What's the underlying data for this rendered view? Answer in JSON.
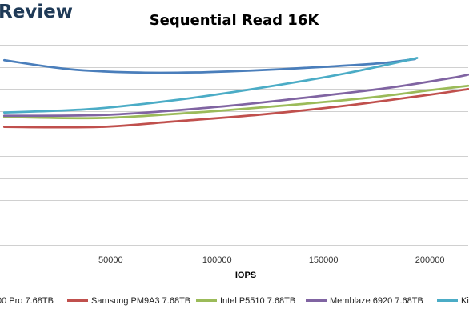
{
  "watermark": "Review",
  "chart_data": {
    "type": "line",
    "title": "Sequential Read 16K",
    "xlabel": "IOPS",
    "ylabel": "",
    "xlim": [
      -2000,
      218000
    ],
    "ylim": [
      0,
      10
    ],
    "x_ticks": [
      50000,
      100000,
      150000,
      200000
    ],
    "x_tick_labels": [
      "50000",
      "100000",
      "150000",
      "200000"
    ],
    "grid": "horizontal",
    "legend_position": "bottom",
    "series": [
      {
        "name": "00 Pro 7.68TB",
        "color": "#4a7ebb",
        "points": [
          [
            0,
            8.3
          ],
          [
            30000,
            7.9
          ],
          [
            60000,
            7.75
          ],
          [
            90000,
            7.75
          ],
          [
            120000,
            7.85
          ],
          [
            150000,
            8.0
          ],
          [
            175000,
            8.15
          ],
          [
            193000,
            8.35
          ]
        ]
      },
      {
        "name": "Samsung PM9A3 7.68TB",
        "color": "#c0504d",
        "points": [
          [
            0,
            5.3
          ],
          [
            45000,
            5.3
          ],
          [
            80000,
            5.55
          ],
          [
            120000,
            5.85
          ],
          [
            160000,
            6.25
          ],
          [
            200000,
            6.75
          ],
          [
            218000,
            7.0
          ]
        ]
      },
      {
        "name": "Intel P5510 7.68TB",
        "color": "#9bbb59",
        "points": [
          [
            0,
            5.75
          ],
          [
            45000,
            5.7
          ],
          [
            90000,
            5.95
          ],
          [
            130000,
            6.25
          ],
          [
            170000,
            6.6
          ],
          [
            200000,
            6.95
          ],
          [
            218000,
            7.15
          ]
        ]
      },
      {
        "name": "Memblaze 6920 7.68TB",
        "color": "#8064a2",
        "points": [
          [
            0,
            5.8
          ],
          [
            50000,
            5.85
          ],
          [
            100000,
            6.2
          ],
          [
            140000,
            6.6
          ],
          [
            180000,
            7.05
          ],
          [
            210000,
            7.5
          ],
          [
            218000,
            7.65
          ]
        ]
      },
      {
        "name": "Ki",
        "color": "#4bacc6",
        "points": [
          [
            0,
            5.95
          ],
          [
            40000,
            6.1
          ],
          [
            80000,
            6.5
          ],
          [
            120000,
            7.05
          ],
          [
            160000,
            7.7
          ],
          [
            194000,
            8.4
          ]
        ]
      }
    ]
  }
}
